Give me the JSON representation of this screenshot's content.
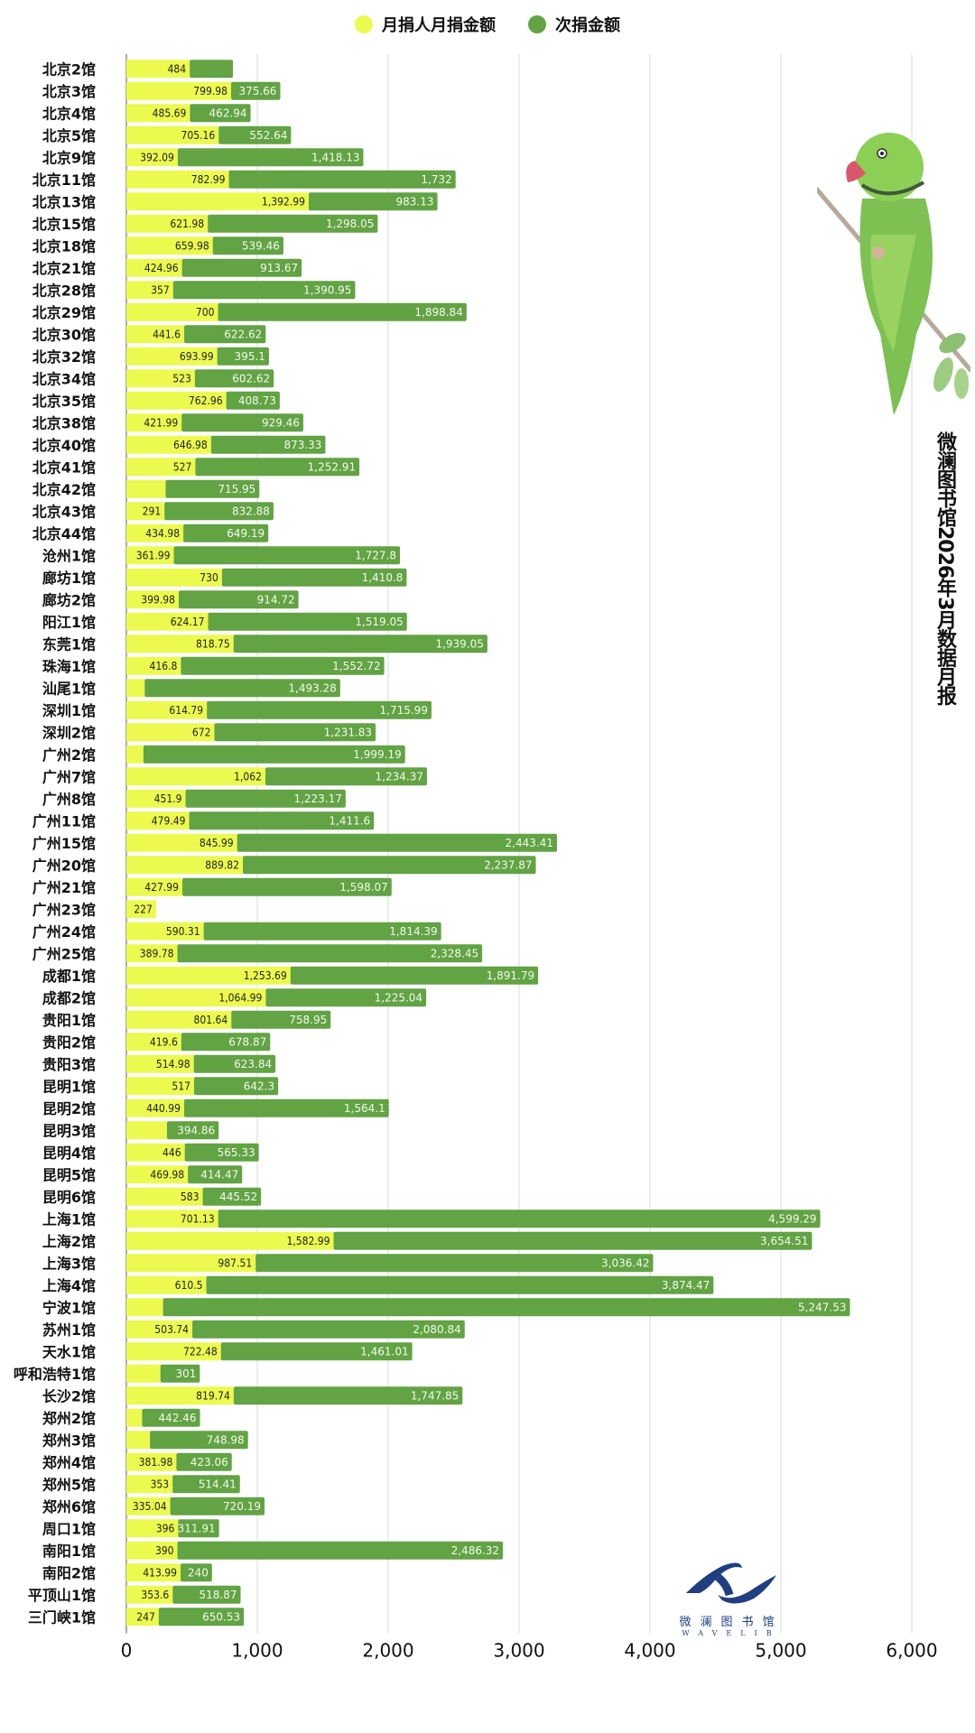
{
  "title": "微澜图书馆2026年3月数据月报",
  "logo": {
    "cn": "微澜图书馆",
    "en": "WAVELIB"
  },
  "colors": {
    "monthly": "#ecfa4f",
    "single": "#62a344",
    "grid": "#d9d9d9"
  },
  "chart_data": {
    "type": "bar",
    "orientation": "horizontal",
    "stacked": true,
    "title": "微澜图书馆2026年3月数据月报",
    "xlabel": "",
    "ylabel": "",
    "xlim": [
      0,
      6000
    ],
    "xticks": [
      "0",
      "1,000",
      "2,000",
      "3,000",
      "4,000",
      "5,000",
      "6,000"
    ],
    "grid": "vertical",
    "legend_position": "top-center",
    "categories": [
      "北京2馆",
      "北京3馆",
      "北京4馆",
      "北京5馆",
      "北京9馆",
      "北京11馆",
      "北京13馆",
      "北京15馆",
      "北京18馆",
      "北京21馆",
      "北京28馆",
      "北京29馆",
      "北京30馆",
      "北京32馆",
      "北京34馆",
      "北京35馆",
      "北京38馆",
      "北京40馆",
      "北京41馆",
      "北京42馆",
      "北京43馆",
      "北京44馆",
      "沧州1馆",
      "廊坊1馆",
      "廊坊2馆",
      "阳江1馆",
      "东莞1馆",
      "珠海1馆",
      "汕尾1馆",
      "深圳1馆",
      "深圳2馆",
      "广州2馆",
      "广州7馆",
      "广州8馆",
      "广州11馆",
      "广州15馆",
      "广州20馆",
      "广州21馆",
      "广州23馆",
      "广州24馆",
      "广州25馆",
      "成都1馆",
      "成都2馆",
      "贵阳1馆",
      "贵阳2馆",
      "贵阳3馆",
      "昆明1馆",
      "昆明2馆",
      "昆明3馆",
      "昆明4馆",
      "昆明5馆",
      "昆明6馆",
      "上海1馆",
      "上海2馆",
      "上海3馆",
      "上海4馆",
      "宁波1馆",
      "苏州1馆",
      "天水1馆",
      "呼和浩特1馆",
      "长沙2馆",
      "郑州2馆",
      "郑州3馆",
      "郑州4馆",
      "郑州5馆",
      "郑州6馆",
      "周口1馆",
      "南阳1馆",
      "南阳2馆",
      "平顶山1馆",
      "三门峡1馆"
    ],
    "series": [
      {
        "name": "月捐人月捐金额",
        "values": [
          484,
          799.98,
          485.69,
          705.16,
          392.09,
          782.99,
          1392.99,
          621.98,
          659.98,
          424.96,
          357,
          700,
          441.6,
          693.99,
          523,
          762.96,
          421.99,
          646.98,
          527,
          300,
          291,
          434.98,
          361.99,
          730,
          399.98,
          624.17,
          818.75,
          416.8,
          140,
          614.79,
          672,
          130,
          1062,
          451.9,
          479.49,
          845.99,
          889.82,
          427.99,
          227,
          590.31,
          389.78,
          1253.69,
          1064.99,
          801.64,
          419.6,
          514.98,
          517,
          440.99,
          310,
          446,
          469.98,
          583,
          701.13,
          1582.99,
          987.51,
          610.5,
          280,
          503.74,
          722.48,
          260,
          819.74,
          120,
          180,
          381.98,
          353,
          335.04,
          396,
          390,
          413.99,
          353.6,
          247
        ],
        "labels": [
          "484",
          "799.98",
          "485.69",
          "705.16",
          "392.09",
          "782.99",
          "1,392.99",
          "621.98",
          "659.98",
          "424.96",
          "357",
          "700",
          "441.6",
          "693.99",
          "523",
          "762.96",
          "421.99",
          "646.98",
          "527",
          null,
          "291",
          "434.98",
          "361.99",
          "730",
          "399.98",
          "624.17",
          "818.75",
          "416.8",
          null,
          "614.79",
          "672",
          null,
          "1,062",
          "451.9",
          "479.49",
          "845.99",
          "889.82",
          "427.99",
          "227",
          "590.31",
          "389.78",
          "1,253.69",
          "1,064.99",
          "801.64",
          "419.6",
          "514.98",
          "517",
          "440.99",
          null,
          "446",
          "469.98",
          "583",
          "701.13",
          "1,582.99",
          "987.51",
          "610.5",
          null,
          "503.74",
          "722.48",
          null,
          "819.74",
          null,
          null,
          "381.98",
          "353",
          "335.04",
          "396",
          "390",
          "413.99",
          "353.6",
          "247"
        ]
      },
      {
        "name": "次捐金额",
        "values": [
          330,
          375.66,
          462.94,
          552.64,
          1418.13,
          1732,
          983.13,
          1298.05,
          539.46,
          913.67,
          1390.95,
          1898.84,
          622.62,
          395.1,
          602.62,
          408.73,
          929.46,
          873.33,
          1252.91,
          715.95,
          832.88,
          649.19,
          1727.8,
          1410.8,
          914.72,
          1519.05,
          1939.05,
          1552.72,
          1493.28,
          1715.99,
          1231.83,
          1999.19,
          1234.37,
          1223.17,
          1411.6,
          2443.41,
          2237.87,
          1598.07,
          0,
          1814.39,
          2328.45,
          1891.79,
          1225.04,
          758.95,
          678.87,
          623.84,
          642.3,
          1564.1,
          394.86,
          565.33,
          414.47,
          445.52,
          4599.29,
          3654.51,
          3036.42,
          3874.47,
          5247.53,
          2080.84,
          1461.01,
          301,
          1747.85,
          442.46,
          748.98,
          423.06,
          514.41,
          720.19,
          311.91,
          2486.32,
          240,
          518.87,
          650.53
        ],
        "labels": [
          null,
          "375.66",
          "462.94",
          "552.64",
          "1,418.13",
          "1,732",
          "983.13",
          "1,298.05",
          "539.46",
          "913.67",
          "1,390.95",
          "1,898.84",
          "622.62",
          "395.1",
          "602.62",
          "408.73",
          "929.46",
          "873.33",
          "1,252.91",
          "715.95",
          "832.88",
          "649.19",
          "1,727.8",
          "1,410.8",
          "914.72",
          "1,519.05",
          "1,939.05",
          "1,552.72",
          "1,493.28",
          "1,715.99",
          "1,231.83",
          "1,999.19",
          "1,234.37",
          "1,223.17",
          "1,411.6",
          "2,443.41",
          "2,237.87",
          "1,598.07",
          null,
          "1,814.39",
          "2,328.45",
          "1,891.79",
          "1,225.04",
          "758.95",
          "678.87",
          "623.84",
          "642.3",
          "1,564.1",
          "394.86",
          "565.33",
          "414.47",
          "445.52",
          "4,599.29",
          "3,654.51",
          "3,036.42",
          "3,874.47",
          "5,247.53",
          "2,080.84",
          "1,461.01",
          "301",
          "1,747.85",
          "442.46",
          "748.98",
          "423.06",
          "514.41",
          "720.19",
          "311.91",
          "2,486.32",
          "240",
          "518.87",
          "650.53"
        ]
      }
    ]
  }
}
